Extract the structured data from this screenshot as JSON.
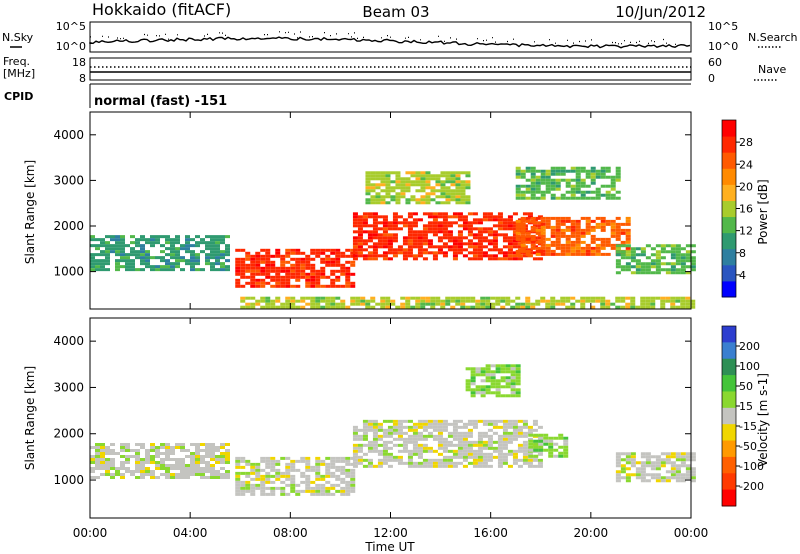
{
  "header": {
    "station": "Hokkaido (fitACF)",
    "beam": "Beam 03",
    "date": "10/Jun/2012"
  },
  "noise_panel": {
    "left_label": "N.Sky",
    "right_label": "N.Search",
    "y_ticks": [
      "10^5",
      "10^0"
    ]
  },
  "freq_panel": {
    "left_label_1": "Freq.",
    "left_label_2": "[MHz]",
    "right_label": "Nave",
    "left_ticks": [
      "18",
      "8"
    ],
    "right_ticks": [
      "60",
      "0"
    ]
  },
  "cpid_panel": {
    "label": "CPID",
    "mode": "normal (fast) -151"
  },
  "x_axis": {
    "title": "Time UT",
    "ticks": [
      "00:00",
      "04:00",
      "08:00",
      "12:00",
      "16:00",
      "20:00",
      "00:00"
    ]
  },
  "colors": {
    "power_scale": [
      "#0000ff",
      "#2a55c0",
      "#2e7fa0",
      "#2f9a70",
      "#52b84a",
      "#a8cc2c",
      "#ffb020",
      "#ff8a00",
      "#ff5a00",
      "#ff2800",
      "#ff0000"
    ],
    "velocity_scale": [
      "#2d3ecf",
      "#3a7fd0",
      "#2e8f55",
      "#44c43a",
      "#8ad830",
      "#c4c4c0",
      "#f0d600",
      "#ff9a00",
      "#ff6000",
      "#ff3a00",
      "#ff0000"
    ]
  },
  "chart_data": [
    {
      "type": "heatmap",
      "panel": "power",
      "ylabel": "Slant Range [km]",
      "xlabel": "Time UT",
      "xlim_hours": [
        0,
        24
      ],
      "ylim": [
        180,
        4500
      ],
      "y_ticks": [
        1000,
        2000,
        3000,
        4000
      ],
      "colorbar": {
        "label": "Power [dB]",
        "ticks": [
          4,
          8,
          12,
          16,
          20,
          24,
          28
        ],
        "range": [
          0,
          32
        ]
      },
      "features": [
        {
          "t": [
            0,
            5.5
          ],
          "range_km": [
            1050,
            1800
          ],
          "level": 10
        },
        {
          "t": [
            5.8,
            10.5
          ],
          "range_km": [
            700,
            1500
          ],
          "level": 28
        },
        {
          "t": [
            10.5,
            18
          ],
          "range_km": [
            1300,
            2300
          ],
          "level": 28
        },
        {
          "t": [
            11,
            15
          ],
          "range_km": [
            2500,
            3200
          ],
          "level": 17
        },
        {
          "t": [
            17,
            21.5
          ],
          "range_km": [
            1400,
            2200
          ],
          "level": 24
        },
        {
          "t": [
            17,
            21
          ],
          "range_km": [
            2600,
            3300
          ],
          "level": 12
        },
        {
          "t": [
            21,
            24
          ],
          "range_km": [
            1000,
            1600
          ],
          "level": 14
        },
        {
          "t": [
            6,
            24
          ],
          "range_km": [
            200,
            450
          ],
          "level": 16
        }
      ]
    },
    {
      "type": "heatmap",
      "panel": "velocity",
      "ylabel": "Slant Range [km]",
      "xlabel": "Time UT",
      "xlim_hours": [
        0,
        24
      ],
      "ylim": [
        180,
        4500
      ],
      "y_ticks": [
        1000,
        2000,
        3000,
        4000
      ],
      "colorbar": {
        "label": "Velocity [m s-1]",
        "ticks": [
          200,
          100,
          50,
          15,
          -15,
          -50,
          -100,
          -200
        ],
        "range": [
          -250,
          250
        ]
      },
      "features": [
        {
          "t": [
            0,
            5.5
          ],
          "range_km": [
            1050,
            1800
          ],
          "value": 0
        },
        {
          "t": [
            5.8,
            10.5
          ],
          "range_km": [
            700,
            1500
          ],
          "value": 0
        },
        {
          "t": [
            10.5,
            18
          ],
          "range_km": [
            1300,
            2300
          ],
          "value": 0
        },
        {
          "t": [
            15,
            17
          ],
          "range_km": [
            2800,
            3500
          ],
          "value": 40
        },
        {
          "t": [
            17.5,
            19
          ],
          "range_km": [
            1500,
            2000
          ],
          "value": 40
        },
        {
          "t": [
            21,
            24
          ],
          "range_km": [
            1000,
            1600
          ],
          "value": 0
        }
      ]
    }
  ]
}
